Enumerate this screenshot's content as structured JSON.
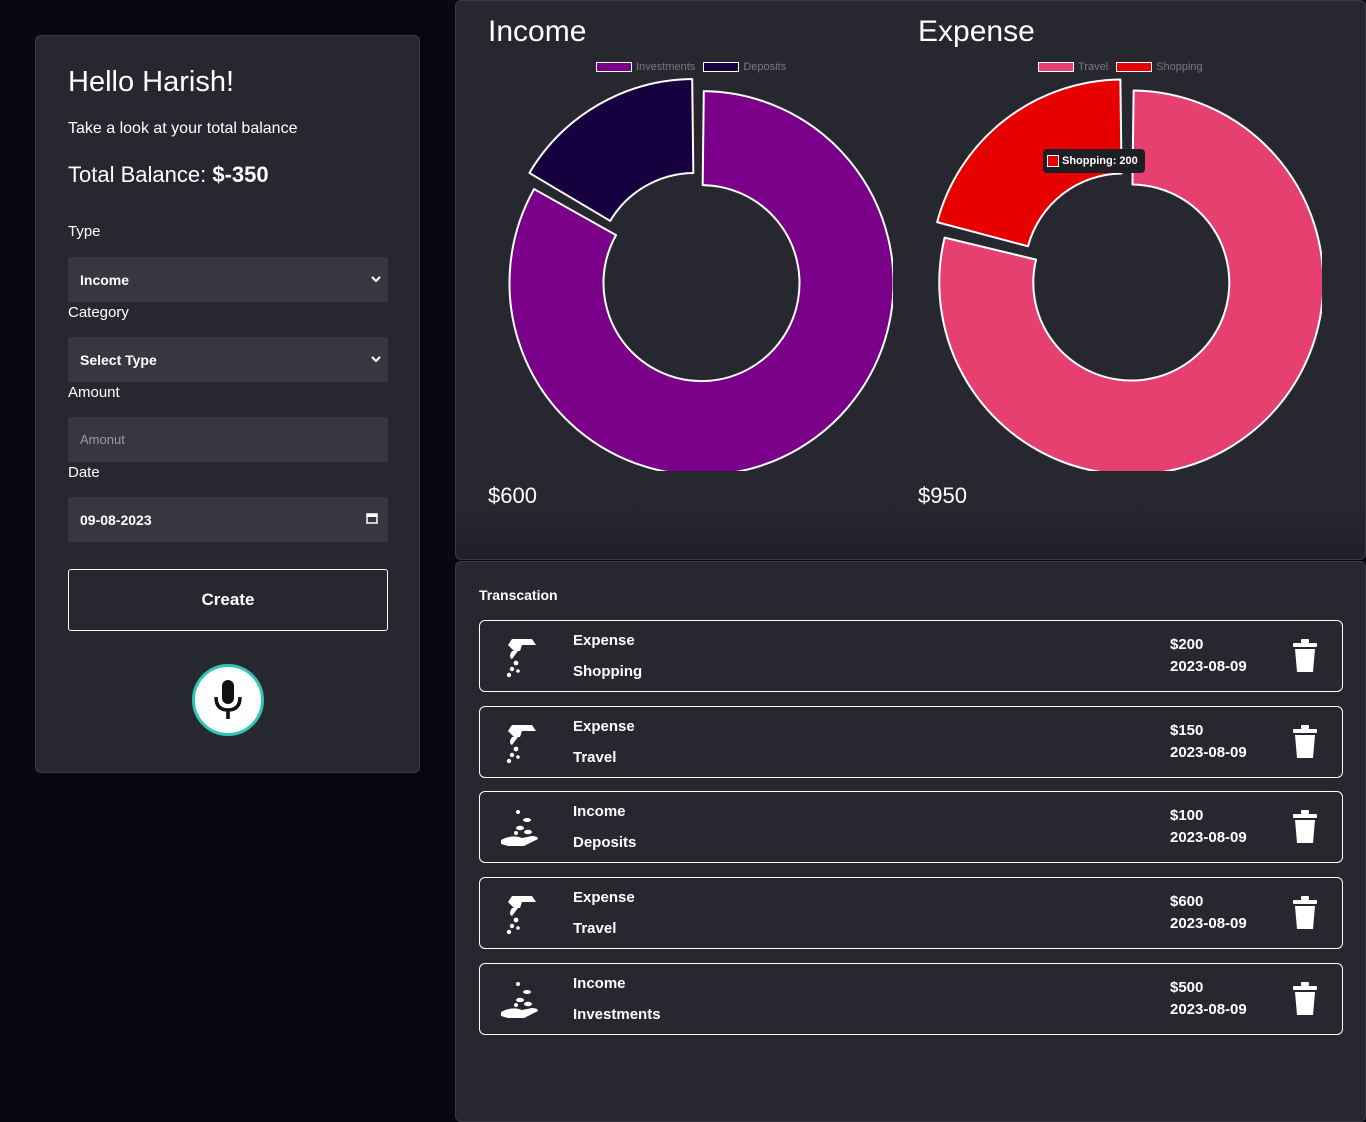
{
  "form": {
    "greeting": "Hello Harish!",
    "subtitle": "Take a look at your total balance",
    "balance_label": "Total Balance:",
    "balance_value": "$-350",
    "type_label": "Type",
    "type_value": "Income",
    "category_label": "Category",
    "category_value": "Select Type",
    "amount_label": "Amount",
    "amount_placeholder": "Amonut",
    "date_label": "Date",
    "date_value": "09-08-2023",
    "create_label": "Create",
    "mic_icon": "microphone-icon"
  },
  "charts": {
    "income": {
      "title": "Income",
      "total": "$600",
      "chart_data": {
        "type": "pie",
        "variant": "doughnut",
        "categories": [
          "Investments",
          "Deposits"
        ],
        "values": [
          500,
          100
        ],
        "colors": [
          "#7a008a",
          "#170040"
        ]
      }
    },
    "expense": {
      "title": "Expense",
      "total": "$950",
      "chart_data": {
        "type": "pie",
        "variant": "doughnut",
        "categories": [
          "Travel",
          "Shopping"
        ],
        "values": [
          750,
          200
        ],
        "colors": [
          "#e54070",
          "#e60000"
        ],
        "tooltip": "Shopping: 200"
      }
    }
  },
  "transactions": {
    "heading": "Transcation",
    "items": [
      {
        "type": "Expense",
        "category": "Shopping",
        "amount": "$200",
        "date": "2023-08-09",
        "icon": "expense-hand-icon"
      },
      {
        "type": "Expense",
        "category": "Travel",
        "amount": "$150",
        "date": "2023-08-09",
        "icon": "expense-hand-icon"
      },
      {
        "type": "Income",
        "category": "Deposits",
        "amount": "$100",
        "date": "2023-08-09",
        "icon": "income-hand-icon"
      },
      {
        "type": "Expense",
        "category": "Travel",
        "amount": "$600",
        "date": "2023-08-09",
        "icon": "expense-hand-icon"
      },
      {
        "type": "Income",
        "category": "Investments",
        "amount": "$500",
        "date": "2023-08-09",
        "icon": "income-hand-icon"
      }
    ]
  }
}
